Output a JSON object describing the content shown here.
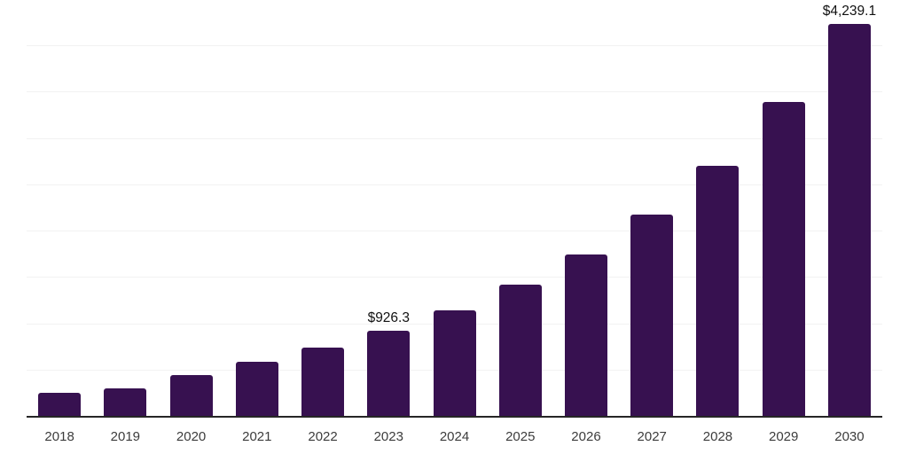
{
  "chart_data": {
    "type": "bar",
    "title": "",
    "xlabel": "",
    "ylabel": "",
    "categories": [
      "2018",
      "2019",
      "2020",
      "2021",
      "2022",
      "2023",
      "2024",
      "2025",
      "2026",
      "2027",
      "2028",
      "2029",
      "2030"
    ],
    "values": [
      254,
      307,
      450,
      596,
      748,
      926.3,
      1147,
      1424,
      1750,
      2183,
      2714,
      3403,
      4239.1
    ],
    "data_labels": [
      null,
      null,
      null,
      null,
      null,
      "$926.3",
      null,
      null,
      null,
      null,
      null,
      null,
      "$4,239.1"
    ],
    "ylim": [
      0,
      4500
    ],
    "gridline_step": 500,
    "grid": "horizontal",
    "legend_position": "none",
    "colors": {
      "bar": "#371150",
      "gridline": "#f2f2f2",
      "axis_line": "#262626",
      "tick_label": "#3c3c3c",
      "annotation": "#111111",
      "background": "#ffffff"
    }
  }
}
